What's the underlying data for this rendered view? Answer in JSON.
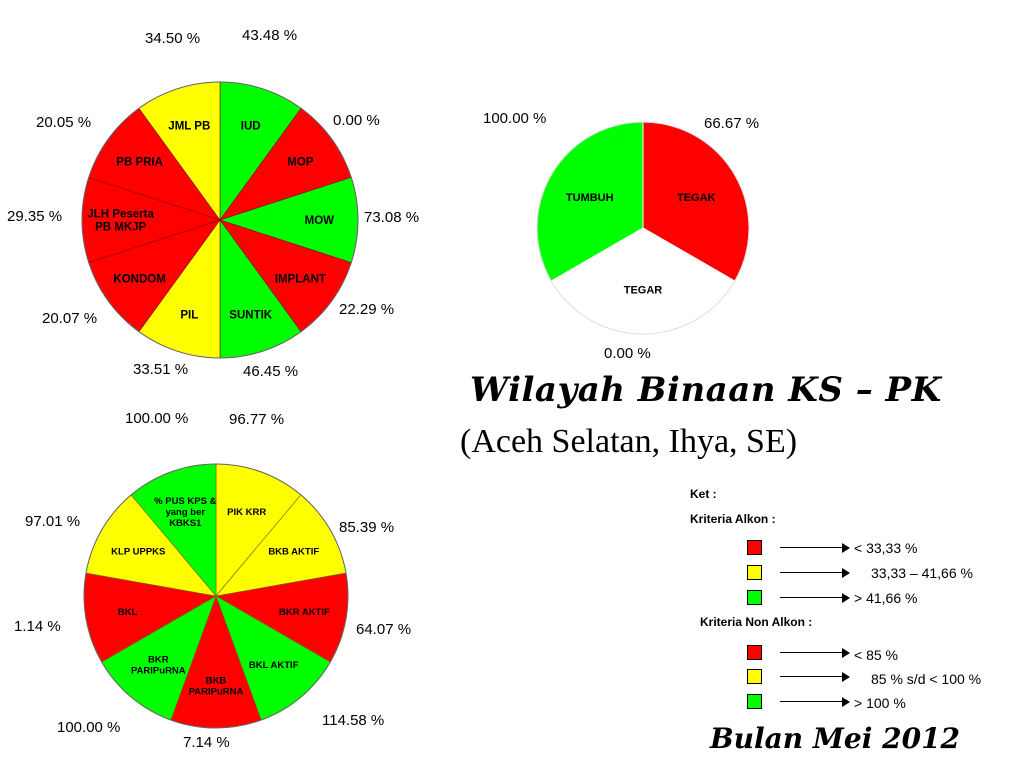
{
  "colors": {
    "red": "#ff0000",
    "yellow": "#ffff00",
    "green": "#00ff00",
    "white": "#ffffff"
  },
  "chart_data": [
    {
      "type": "pie",
      "title": "",
      "slices": [
        {
          "label": "IUD",
          "value": 43.48,
          "value_label": "43.48 %",
          "color": "green"
        },
        {
          "label": "MOP",
          "value": 0.0,
          "value_label": "0.00 %",
          "color": "red"
        },
        {
          "label": "MOW",
          "value": 73.08,
          "value_label": "73.08 %",
          "color": "green"
        },
        {
          "label": "IMPLANT",
          "value": 22.29,
          "value_label": "22.29 %",
          "color": "red"
        },
        {
          "label": "SUNTIK",
          "value": 46.45,
          "value_label": "46.45 %",
          "color": "green"
        },
        {
          "label": "PIL",
          "value": 33.51,
          "value_label": "33.51 %",
          "color": "yellow"
        },
        {
          "label": "KONDOM",
          "value": 20.07,
          "value_label": "20.07 %",
          "color": "red"
        },
        {
          "label": "JLH Peserta PB MKJP",
          "value": 29.35,
          "value_label": "29.35 %",
          "color": "red"
        },
        {
          "label": "PB PRIA",
          "value": 20.05,
          "value_label": "20.05 %",
          "color": "red"
        },
        {
          "label": "JML PB",
          "value": 34.5,
          "value_label": "34.50 %",
          "color": "yellow"
        }
      ]
    },
    {
      "type": "pie",
      "title": "",
      "slices": [
        {
          "label": "TEGAK",
          "value": 66.67,
          "value_label": "66.67 %",
          "color": "red"
        },
        {
          "label": "TEGAR",
          "value": 0.0,
          "value_label": "0.00 %",
          "color": "white"
        },
        {
          "label": "TUMBUH",
          "value": 100.0,
          "value_label": "100.00 %",
          "color": "green"
        }
      ]
    },
    {
      "type": "pie",
      "title": "",
      "slices": [
        {
          "label": "PIK KRR",
          "value": 96.77,
          "value_label": "96.77 %",
          "color": "yellow"
        },
        {
          "label": "BKB AKTIF",
          "value": 85.39,
          "value_label": "85.39 %",
          "color": "yellow"
        },
        {
          "label": "BKR AKTIF",
          "value": 64.07,
          "value_label": "64.07 %",
          "color": "red"
        },
        {
          "label": "BKL AKTIF",
          "value": 114.58,
          "value_label": "114.58 %",
          "color": "green"
        },
        {
          "label": "BKB PARIPuRNA",
          "value": 7.14,
          "value_label": "7.14 %",
          "color": "red"
        },
        {
          "label": "BKR PARIPuRNA",
          "value": 100.0,
          "value_label": "100.00 %",
          "color": "green"
        },
        {
          "label": "BKL",
          "value": 1.14,
          "value_label": "1.14 %",
          "color": "red"
        },
        {
          "label": "KLP UPPKS",
          "value": 97.01,
          "value_label": "97.01 %",
          "color": "yellow"
        },
        {
          "label": "% PUS KPS & yang ber KBKS1",
          "value": 100.0,
          "value_label": "100.00 %",
          "color": "green"
        }
      ]
    }
  ],
  "title": {
    "line1": "Wilayah Binaan  KS – PK",
    "line2": "(Aceh Selatan, Ihya, SE)"
  },
  "date": "Bulan Mei 2012",
  "legend": {
    "ket": "Ket :",
    "alkon_heading": "Kriteria Alkon  :",
    "alkon": [
      {
        "color": "red",
        "text": "< 33,33 %"
      },
      {
        "color": "yellow",
        "text": "33,33 – 41,66 %"
      },
      {
        "color": "green",
        "text": ">  41,66 %"
      }
    ],
    "non_alkon_heading": "Kriteria Non Alkon  :",
    "non_alkon": [
      {
        "color": "red",
        "text": "< 85 %"
      },
      {
        "color": "yellow",
        "text": "85 % s/d < 100 %"
      },
      {
        "color": "green",
        "text": ">  100 %"
      }
    ]
  }
}
